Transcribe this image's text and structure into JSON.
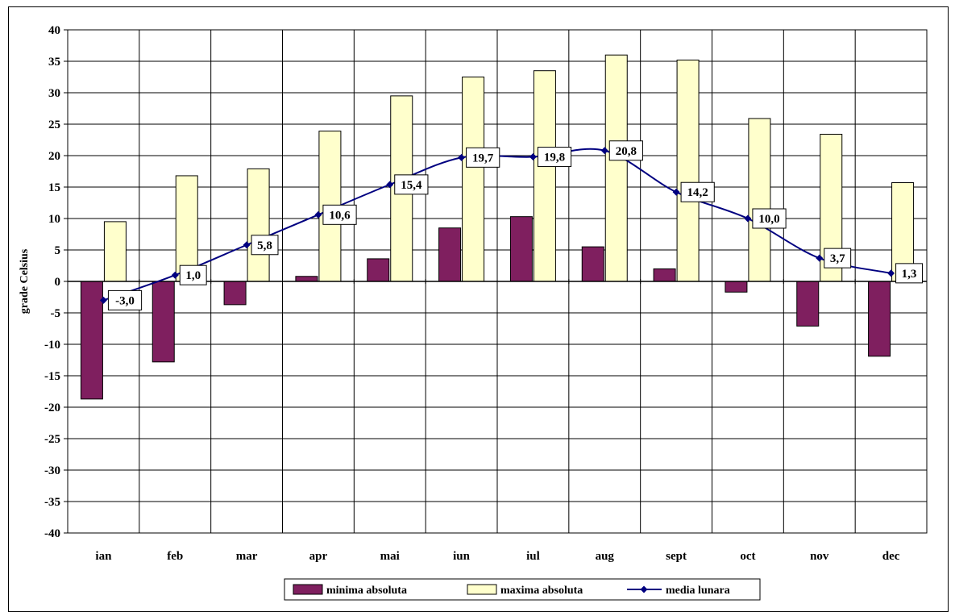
{
  "chart_data": {
    "type": "bar",
    "categories": [
      "ian",
      "feb",
      "mar",
      "apr",
      "mai",
      "iun",
      "iul",
      "aug",
      "sept",
      "oct",
      "nov",
      "dec"
    ],
    "series": [
      {
        "name": "minima absoluta",
        "type": "bar",
        "color": "#7f1f5f",
        "values": [
          -18.7,
          -12.8,
          -3.7,
          0.8,
          3.6,
          8.5,
          10.3,
          5.5,
          2.0,
          -1.7,
          -7.1,
          -11.9
        ]
      },
      {
        "name": "maxima absoluta",
        "type": "bar",
        "color": "#ffffcc",
        "values": [
          9.5,
          16.8,
          17.9,
          23.9,
          29.5,
          32.5,
          33.5,
          36.0,
          35.2,
          25.9,
          23.4,
          15.7
        ]
      },
      {
        "name": "media lunara",
        "type": "line",
        "color": "#000080",
        "values": [
          -3.0,
          1.0,
          5.8,
          10.6,
          15.4,
          19.7,
          19.8,
          20.8,
          14.2,
          10.0,
          3.7,
          1.3
        ],
        "labels": [
          "-3,0",
          "1,0",
          "5,8",
          "10,6",
          "15,4",
          "19,7",
          "19,8",
          "20,8",
          "14,2",
          "10,0",
          "3,7",
          "1,3"
        ]
      }
    ],
    "title": "",
    "xlabel": "",
    "ylabel": "grade Celsius",
    "ylim": [
      -40,
      40
    ],
    "yticks": [
      40,
      35,
      30,
      25,
      20,
      15,
      10,
      5,
      0,
      -5,
      -10,
      -15,
      -20,
      -25,
      -30,
      -35,
      -40
    ],
    "grid": true,
    "legend_position": "bottom"
  }
}
